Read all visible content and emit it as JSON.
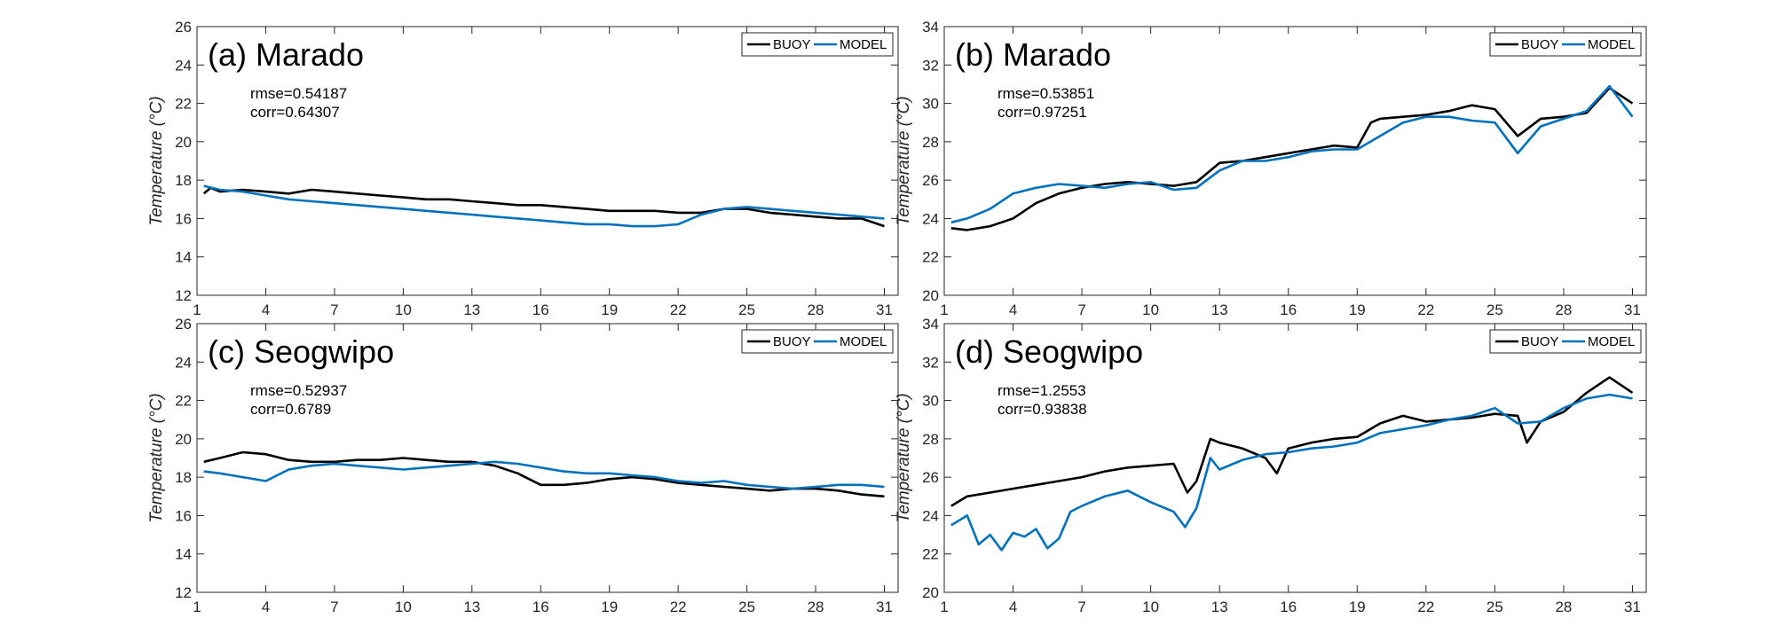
{
  "chart_data": [
    {
      "type": "line",
      "title": "(a) Marado",
      "ylabel": "Temperature (°C)",
      "xlabel": "",
      "xlim": [
        1,
        31.6
      ],
      "ylim": [
        12,
        26
      ],
      "xticks": [
        1,
        4,
        7,
        10,
        13,
        16,
        19,
        22,
        25,
        28,
        31
      ],
      "yticks": [
        12,
        14,
        16,
        18,
        20,
        22,
        24,
        26
      ],
      "annotations": [
        "rmse=0.54187",
        "corr=0.64307"
      ],
      "legend_position": "top-right",
      "series": [
        {
          "name": "BUOY",
          "color": "#000000",
          "x": [
            1.3,
            1.6,
            2,
            3,
            4,
            5,
            6,
            7,
            8,
            9,
            10,
            11,
            12,
            13,
            14,
            15,
            16,
            17,
            18,
            19,
            20,
            21,
            22,
            23,
            24,
            25,
            26,
            27,
            28,
            29,
            30,
            31
          ],
          "y": [
            17.3,
            17.6,
            17.4,
            17.5,
            17.4,
            17.3,
            17.5,
            17.4,
            17.3,
            17.2,
            17.1,
            17.0,
            17.0,
            16.9,
            16.8,
            16.7,
            16.7,
            16.6,
            16.5,
            16.4,
            16.4,
            16.4,
            16.3,
            16.3,
            16.5,
            16.5,
            16.3,
            16.2,
            16.1,
            16.0,
            16.0,
            15.6
          ]
        },
        {
          "name": "MODEL",
          "color": "#0072BD",
          "x": [
            1.3,
            2,
            3,
            4,
            5,
            6,
            7,
            8,
            9,
            10,
            11,
            12,
            13,
            14,
            15,
            16,
            17,
            18,
            19,
            20,
            21,
            22,
            23,
            24,
            25,
            26,
            27,
            28,
            29,
            30,
            31
          ],
          "y": [
            17.7,
            17.5,
            17.4,
            17.2,
            17.0,
            16.9,
            16.8,
            16.7,
            16.6,
            16.5,
            16.4,
            16.3,
            16.2,
            16.1,
            16.0,
            15.9,
            15.8,
            15.7,
            15.7,
            15.6,
            15.6,
            15.7,
            16.2,
            16.5,
            16.6,
            16.5,
            16.4,
            16.3,
            16.2,
            16.1,
            16.0
          ]
        }
      ]
    },
    {
      "type": "line",
      "title": "(b) Marado",
      "ylabel": "Temperature (°C)",
      "xlabel": "",
      "xlim": [
        1,
        31.6
      ],
      "ylim": [
        20,
        34
      ],
      "xticks": [
        1,
        4,
        7,
        10,
        13,
        16,
        19,
        22,
        25,
        28,
        31
      ],
      "yticks": [
        20,
        22,
        24,
        26,
        28,
        30,
        32,
        34
      ],
      "annotations": [
        "rmse=0.53851",
        "corr=0.97251"
      ],
      "legend_position": "top-right",
      "series": [
        {
          "name": "BUOY",
          "color": "#000000",
          "x": [
            1.3,
            2,
            3,
            4,
            5,
            6,
            7,
            8,
            9,
            10,
            11,
            12,
            12.7,
            13,
            14,
            15,
            16,
            17,
            18,
            19,
            19.6,
            20,
            21,
            22,
            23,
            24,
            25,
            26,
            27,
            28,
            29,
            30,
            31
          ],
          "y": [
            23.5,
            23.4,
            23.6,
            24.0,
            24.8,
            25.3,
            25.6,
            25.8,
            25.9,
            25.8,
            25.7,
            25.9,
            26.6,
            26.9,
            27.0,
            27.2,
            27.4,
            27.6,
            27.8,
            27.7,
            29.0,
            29.2,
            29.3,
            29.4,
            29.6,
            29.9,
            29.7,
            28.3,
            29.2,
            29.3,
            29.5,
            30.8,
            30.0
          ]
        },
        {
          "name": "MODEL",
          "color": "#0072BD",
          "x": [
            1.3,
            2,
            3,
            4,
            5,
            6,
            7,
            8,
            9,
            10,
            11,
            12,
            13,
            14,
            15,
            16,
            17,
            18,
            19,
            20,
            21,
            22,
            23,
            24,
            25,
            26,
            27,
            28,
            29,
            30,
            31
          ],
          "y": [
            23.8,
            24.0,
            24.5,
            25.3,
            25.6,
            25.8,
            25.7,
            25.6,
            25.8,
            25.9,
            25.5,
            25.6,
            26.5,
            27.0,
            27.0,
            27.2,
            27.5,
            27.6,
            27.6,
            28.3,
            29.0,
            29.3,
            29.3,
            29.1,
            29.0,
            27.4,
            28.8,
            29.2,
            29.6,
            30.9,
            29.3
          ]
        }
      ]
    },
    {
      "type": "line",
      "title": "(c) Seogwipo",
      "ylabel": "Temperature (°C)",
      "xlabel": "",
      "xlim": [
        1,
        31.6
      ],
      "ylim": [
        12,
        26
      ],
      "xticks": [
        1,
        4,
        7,
        10,
        13,
        16,
        19,
        22,
        25,
        28,
        31
      ],
      "yticks": [
        12,
        14,
        16,
        18,
        20,
        22,
        24,
        26
      ],
      "annotations": [
        "rmse=0.52937",
        "corr=0.6789"
      ],
      "legend_position": "top-right",
      "series": [
        {
          "name": "BUOY",
          "color": "#000000",
          "x": [
            1.3,
            2,
            3,
            4,
            5,
            6,
            7,
            8,
            9,
            10,
            11,
            12,
            13,
            14,
            15,
            16,
            17,
            18,
            19,
            20,
            21,
            22,
            23,
            24,
            25,
            26,
            27,
            28,
            29,
            30,
            31
          ],
          "y": [
            18.8,
            19.0,
            19.3,
            19.2,
            18.9,
            18.8,
            18.8,
            18.9,
            18.9,
            19.0,
            18.9,
            18.8,
            18.8,
            18.6,
            18.2,
            17.6,
            17.6,
            17.7,
            17.9,
            18.0,
            17.9,
            17.7,
            17.6,
            17.5,
            17.4,
            17.3,
            17.4,
            17.4,
            17.3,
            17.1,
            17.0
          ]
        },
        {
          "name": "MODEL",
          "color": "#0072BD",
          "x": [
            1.3,
            2,
            3,
            4,
            5,
            6,
            7,
            8,
            9,
            10,
            11,
            12,
            13,
            14,
            15,
            16,
            17,
            18,
            19,
            20,
            21,
            22,
            23,
            24,
            25,
            26,
            27,
            28,
            29,
            30,
            31
          ],
          "y": [
            18.3,
            18.2,
            18.0,
            17.8,
            18.4,
            18.6,
            18.7,
            18.6,
            18.5,
            18.4,
            18.5,
            18.6,
            18.7,
            18.8,
            18.7,
            18.5,
            18.3,
            18.2,
            18.2,
            18.1,
            18.0,
            17.8,
            17.7,
            17.8,
            17.6,
            17.5,
            17.4,
            17.5,
            17.6,
            17.6,
            17.5
          ]
        }
      ]
    },
    {
      "type": "line",
      "title": "(d) Seogwipo",
      "ylabel": "Temperature (°C)",
      "xlabel": "",
      "xlim": [
        1,
        31.6
      ],
      "ylim": [
        20,
        34
      ],
      "xticks": [
        1,
        4,
        7,
        10,
        13,
        16,
        19,
        22,
        25,
        28,
        31
      ],
      "yticks": [
        20,
        22,
        24,
        26,
        28,
        30,
        32,
        34
      ],
      "annotations": [
        "rmse=1.2553",
        "corr=0.93838"
      ],
      "legend_position": "top-right",
      "series": [
        {
          "name": "BUOY",
          "color": "#000000",
          "x": [
            1.3,
            2,
            3,
            4,
            5,
            6,
            7,
            8,
            9,
            10,
            11,
            11.6,
            12,
            12.6,
            13,
            14,
            15,
            15.5,
            16,
            17,
            18,
            19,
            20,
            21,
            22,
            23,
            24,
            25,
            26,
            26.4,
            27,
            28,
            29,
            30,
            31
          ],
          "y": [
            24.5,
            25.0,
            25.2,
            25.4,
            25.6,
            25.8,
            26.0,
            26.3,
            26.5,
            26.6,
            26.7,
            25.2,
            25.8,
            28.0,
            27.8,
            27.5,
            27.0,
            26.2,
            27.5,
            27.8,
            28.0,
            28.1,
            28.8,
            29.2,
            28.9,
            29.0,
            29.1,
            29.3,
            29.2,
            27.8,
            28.9,
            29.4,
            30.4,
            31.2,
            30.4
          ]
        },
        {
          "name": "MODEL",
          "color": "#0072BD",
          "x": [
            1.3,
            2,
            2.5,
            3,
            3.5,
            4,
            4.5,
            5,
            5.5,
            6,
            6.5,
            7,
            8,
            9,
            10,
            11,
            11.5,
            12,
            12.6,
            13,
            14,
            15,
            16,
            17,
            18,
            19,
            20,
            21,
            22,
            23,
            24,
            25,
            26,
            27,
            28,
            29,
            30,
            31
          ],
          "y": [
            23.5,
            24.0,
            22.5,
            23.0,
            22.2,
            23.1,
            22.9,
            23.3,
            22.3,
            22.8,
            24.2,
            24.5,
            25.0,
            25.3,
            24.7,
            24.2,
            23.4,
            24.4,
            27.0,
            26.4,
            26.9,
            27.2,
            27.3,
            27.5,
            27.6,
            27.8,
            28.3,
            28.5,
            28.7,
            29.0,
            29.2,
            29.6,
            28.8,
            28.9,
            29.6,
            30.1,
            30.3,
            30.1
          ]
        }
      ]
    }
  ]
}
